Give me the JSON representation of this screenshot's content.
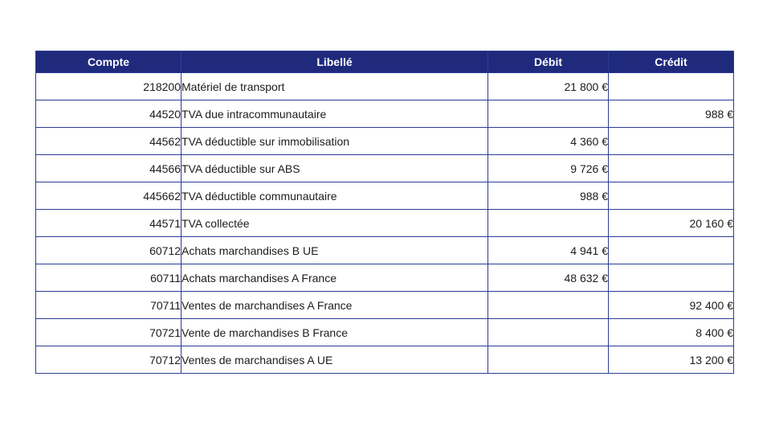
{
  "colors": {
    "page_bg": "#FFFFFF",
    "header_bg": "#1F2A7D",
    "header_text": "#FFFFFF",
    "border": "#2C3D94",
    "body_text": "#1C1C1C"
  },
  "table": {
    "columns": [
      {
        "key": "compte",
        "label": "Compte"
      },
      {
        "key": "libelle",
        "label": "Libellé"
      },
      {
        "key": "debit",
        "label": "Débit"
      },
      {
        "key": "credit",
        "label": "Crédit"
      }
    ],
    "rows": [
      {
        "compte": "218200",
        "libelle": "Matériel de transport",
        "debit": "21 800 €",
        "credit": ""
      },
      {
        "compte": "44520",
        "libelle": "TVA due intracommunautaire",
        "debit": "",
        "credit": "988 €"
      },
      {
        "compte": "44562",
        "libelle": "TVA déductible sur immobilisation",
        "debit": "4 360 €",
        "credit": ""
      },
      {
        "compte": "44566",
        "libelle": "TVA déductible sur ABS",
        "debit": "9 726 €",
        "credit": ""
      },
      {
        "compte": "445662",
        "libelle": "TVA déductible communautaire",
        "debit": "988 €",
        "credit": ""
      },
      {
        "compte": "44571",
        "libelle": "TVA collectée",
        "debit": "",
        "credit": "20 160 €"
      },
      {
        "compte": "60712",
        "libelle": "Achats marchandises B UE",
        "debit": "4 941 €",
        "credit": "",
        "debit_offset": true
      },
      {
        "compte": "60711",
        "libelle": "Achats marchandises A France",
        "debit": "48 632 €",
        "credit": "",
        "debit_offset": true
      },
      {
        "compte": "70711",
        "libelle": "Ventes de marchandises A France",
        "debit": "",
        "credit": "92 400 €"
      },
      {
        "compte": "70721",
        "libelle": "Vente de marchandises B France",
        "debit": "",
        "credit": "8 400 €"
      },
      {
        "compte": "70712",
        "libelle": "Ventes de marchandises A UE",
        "debit": "",
        "credit": "13 200 €"
      }
    ]
  }
}
